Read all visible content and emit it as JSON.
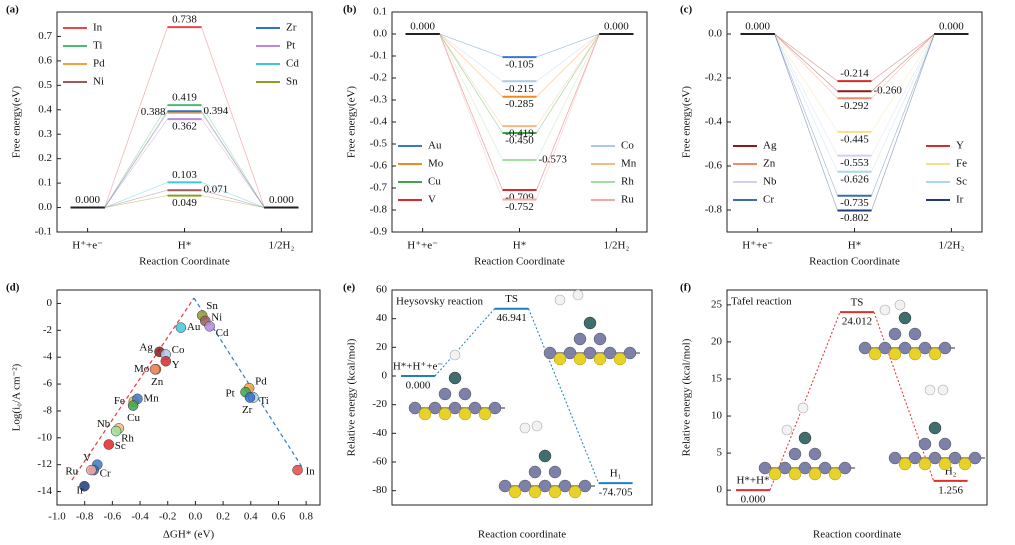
{
  "chart_data": [
    {
      "type": "energy",
      "panel": "(a)",
      "ylabel": "Free energy(eV)",
      "xlabel": "Reaction Coordinate",
      "categories": [
        "H⁺+e⁻",
        "H*",
        "1/2H₂"
      ],
      "ylim": [
        -0.1,
        0.8
      ],
      "yticks": [
        -0.1,
        {
          "value": 0,
          "label": "0.0"
        },
        0.1,
        0.2,
        0.3,
        0.4,
        0.5,
        0.6,
        0.7
      ],
      "legend": "top",
      "series": [
        {
          "name": "In",
          "color": "#e8474b",
          "values": [
            0,
            0.738,
            0
          ],
          "value_labels": [
            "0.000",
            "0.738",
            "0.000"
          ]
        },
        {
          "name": "Ti",
          "color": "#4dba74",
          "values": [
            0,
            0.419,
            0
          ],
          "value_labels": [
            null,
            "0.419",
            null
          ]
        },
        {
          "name": "Pd",
          "color": "#f2a341",
          "values": [
            0,
            0.388,
            0
          ],
          "value_labels": [
            null,
            "0.388",
            null
          ]
        },
        {
          "name": "Ni",
          "color": "#9e5a5a",
          "values": [
            0,
            0.071,
            0
          ],
          "value_labels": [
            null,
            "0.071",
            null
          ]
        },
        {
          "name": "Zr",
          "color": "#2f6fd0",
          "values": [
            0,
            0.394,
            0
          ],
          "value_labels": [
            null,
            "0.394",
            null
          ]
        },
        {
          "name": "Pt",
          "color": "#b58ae0",
          "values": [
            0,
            0.362,
            0
          ],
          "value_labels": [
            null,
            "0.362",
            null
          ]
        },
        {
          "name": "Cd",
          "color": "#3cc8d8",
          "values": [
            0,
            0.103,
            0
          ],
          "value_labels": [
            null,
            "0.103",
            null
          ]
        },
        {
          "name": "Sn",
          "color": "#8f9a2a",
          "values": [
            0,
            0.049,
            0
          ],
          "value_labels": [
            null,
            "0.049",
            null
          ]
        }
      ]
    },
    {
      "type": "energy",
      "panel": "(b)",
      "ylabel": "Free energy(eV)",
      "xlabel": "Reaction Coordinate",
      "categories": [
        "H⁺+e⁻",
        "H*",
        "1/2H₂"
      ],
      "ylim": [
        -0.9,
        0.1
      ],
      "yticks": [
        0.1,
        {
          "value": 0,
          "label": "0.0"
        },
        -0.1,
        -0.2,
        -0.3,
        -0.4,
        -0.5,
        -0.6,
        -0.7,
        -0.8,
        -0.9
      ],
      "legend": "bottom",
      "series": [
        {
          "name": "Au",
          "color": "#3a78c9",
          "values": [
            0,
            -0.105,
            0
          ],
          "value_labels": [
            "0.000",
            "-0.105",
            "0.000"
          ]
        },
        {
          "name": "Mo",
          "color": "#f08a24",
          "values": [
            0,
            -0.285,
            0
          ],
          "value_labels": [
            null,
            "-0.285",
            null
          ]
        },
        {
          "name": "Cu",
          "color": "#3ca54a",
          "values": [
            0,
            -0.45,
            0
          ],
          "value_labels": [
            null,
            "-0.450",
            null
          ]
        },
        {
          "name": "V",
          "color": "#e0262a",
          "values": [
            0,
            -0.709,
            0
          ],
          "value_labels": [
            null,
            "-0.709",
            null
          ]
        },
        {
          "name": "Co",
          "color": "#a9c8ee",
          "values": [
            0,
            -0.215,
            0
          ],
          "value_labels": [
            null,
            "-0.215",
            null
          ]
        },
        {
          "name": "Mn",
          "color": "#f6b980",
          "values": [
            0,
            -0.419,
            0
          ],
          "value_labels": [
            null,
            "-0.419",
            null
          ]
        },
        {
          "name": "Rh",
          "color": "#9fe09f",
          "values": [
            0,
            -0.573,
            0
          ],
          "value_labels": [
            null,
            "-0.573",
            null
          ]
        },
        {
          "name": "Ru",
          "color": "#f4a6a6",
          "values": [
            0,
            -0.752,
            0
          ],
          "value_labels": [
            null,
            "-0.752",
            null
          ]
        }
      ]
    },
    {
      "type": "energy",
      "panel": "(c)",
      "ylabel": "Free energy(eV)",
      "xlabel": "Reaction Coordinate",
      "categories": [
        "H⁺+e⁻",
        "H*",
        "1/2H₂"
      ],
      "ylim": [
        -0.9,
        0.1
      ],
      "yticks": [
        {
          "value": 0,
          "label": "0.0"
        },
        -0.2,
        -0.4,
        -0.6,
        -0.8
      ],
      "legend": "bottom",
      "series": [
        {
          "name": "Ag",
          "color": "#8b1a1a",
          "values": [
            0,
            -0.26,
            0
          ],
          "value_labels": [
            "0.000",
            "-0.260",
            "0.000"
          ]
        },
        {
          "name": "Zn",
          "color": "#f08a6a",
          "values": [
            0,
            -0.292,
            0
          ],
          "value_labels": [
            null,
            "-0.292",
            null
          ]
        },
        {
          "name": "Nb",
          "color": "#d0d0f0",
          "values": [
            0,
            -0.553,
            0
          ],
          "value_labels": [
            null,
            "-0.553",
            null
          ]
        },
        {
          "name": "Cr",
          "color": "#3a6ea8",
          "values": [
            0,
            -0.735,
            0
          ],
          "value_labels": [
            null,
            "-0.735",
            null
          ]
        },
        {
          "name": "Y",
          "color": "#d42b2b",
          "values": [
            0,
            -0.214,
            0
          ],
          "value_labels": [
            null,
            "-0.214",
            null
          ]
        },
        {
          "name": "Fe",
          "color": "#f7e08a",
          "values": [
            0,
            -0.445,
            0
          ],
          "value_labels": [
            null,
            "-0.445",
            null
          ]
        },
        {
          "name": "Sc",
          "color": "#a8d8ec",
          "values": [
            0,
            -0.626,
            0
          ],
          "value_labels": [
            null,
            "-0.626",
            null
          ]
        },
        {
          "name": "Ir",
          "color": "#1f3b7a",
          "values": [
            0,
            -0.802,
            0
          ],
          "value_labels": [
            null,
            "-0.802",
            null
          ]
        }
      ]
    },
    {
      "type": "scatter",
      "panel": "(d)",
      "ylabel": "Log(i₀/A cm⁻²)",
      "xlabel": "ΔGH* (eV)",
      "xlim": [
        -1.0,
        0.9
      ],
      "xticks": [
        {
          "value": -1,
          "label": "-1.0"
        },
        -0.8,
        -0.6,
        -0.4,
        -0.2,
        {
          "value": 0,
          "label": "0.0"
        },
        0.2,
        0.4,
        0.6,
        0.8
      ],
      "ylim": [
        -15,
        1
      ],
      "yticks": [
        0,
        -2,
        -4,
        -6,
        -8,
        -10,
        -12,
        -14
      ],
      "categories": [
        "Sn",
        "Ni",
        "Cd",
        "Au",
        "Ag",
        "Co",
        "Y",
        "Mo",
        "Zn",
        "Fe",
        "Mn",
        "Cu",
        "Nb",
        "Rh",
        "Sc",
        "V",
        "Cr",
        "Ru",
        "Ir",
        "Pd",
        "Pt",
        "Ti",
        "Zr",
        "In"
      ],
      "x": [
        0.049,
        0.071,
        0.103,
        -0.105,
        -0.26,
        -0.215,
        -0.214,
        -0.285,
        -0.292,
        -0.445,
        -0.419,
        -0.45,
        -0.553,
        -0.573,
        -0.626,
        -0.709,
        -0.735,
        -0.752,
        -0.802,
        0.388,
        0.362,
        0.419,
        0.394,
        0.738
      ],
      "values": [
        -0.9,
        -1.3,
        -1.7,
        -1.8,
        -3.6,
        -3.8,
        -4.3,
        -4.9,
        -4.9,
        -7.3,
        -7.1,
        -7.6,
        -9.3,
        -9.5,
        -10.5,
        -12,
        -12.4,
        -12.4,
        -13.6,
        -6.3,
        -6.6,
        -7,
        -7,
        -12.4
      ],
      "colors": [
        "#8f9a2a",
        "#9e5a5a",
        "#b58ae0",
        "#3cc8d8",
        "#8b1a1a",
        "#a9c8ee",
        "#d42b2b",
        "#f08a24",
        "#f08a6a",
        "#f7c040",
        "#3a78c9",
        "#3ca54a",
        "#f6b980",
        "#9fe09f",
        "#e0262a",
        "#3a78c9",
        "#3a6ea8",
        "#f4a6a6",
        "#1f3b7a",
        "#f2a341",
        "#3ca54a",
        "#a8d8ec",
        "#2f6fd0",
        "#e8474b"
      ]
    },
    {
      "type": "profile",
      "panel": "(e)",
      "annotation": "Heysovsky reaction",
      "color": "#1e7fc4",
      "ylabel": "Relative energy (kcal/mol)",
      "xlabel": "Reaction coordinate",
      "ylim": [
        -90,
        60
      ],
      "yticks": [
        60,
        40,
        20,
        0,
        -20,
        -40,
        -60,
        -80
      ],
      "categories": [
        "H*+H⁺+e⁻",
        "TS",
        "H₁"
      ],
      "values": [
        0,
        46.941,
        -74.705
      ],
      "value_labels": [
        "0.000",
        "46.941",
        "-74.705"
      ]
    },
    {
      "type": "profile",
      "panel": "(f)",
      "annotation": "Tafel reaction",
      "color": "#e0302a",
      "ylabel": "Relative energy (kcal/mol)",
      "xlabel": "Reaction coordinate",
      "ylim": [
        -2,
        27
      ],
      "yticks": [
        0,
        5,
        10,
        15,
        20,
        25
      ],
      "categories": [
        "H*+H*",
        "TS",
        "H₂"
      ],
      "values": [
        0,
        24.012,
        1.256
      ],
      "value_labels": [
        "0.000",
        "24.012",
        "1.256"
      ]
    }
  ]
}
